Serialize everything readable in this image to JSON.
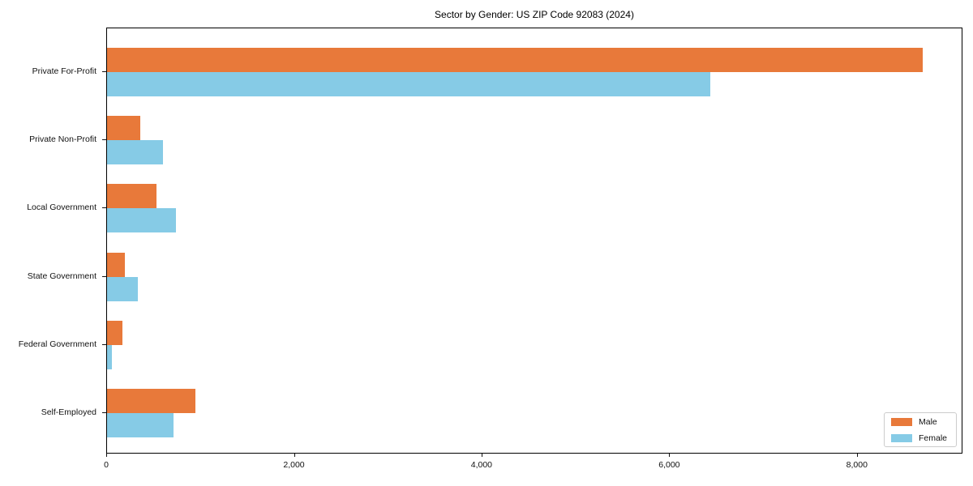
{
  "chart_data": {
    "type": "bar",
    "orientation": "horizontal",
    "title": "Sector by Gender: US ZIP Code 92083 (2024)",
    "categories": [
      "Private For-Profit",
      "Private Non-Profit",
      "Local Government",
      "State Government",
      "Federal Government",
      "Self-Employed"
    ],
    "series": [
      {
        "name": "Male",
        "color": "#e8793a",
        "values": [
          8690,
          350,
          530,
          190,
          165,
          940
        ]
      },
      {
        "name": "Female",
        "color": "#86cbe6",
        "values": [
          6430,
          600,
          730,
          330,
          50,
          710
        ]
      }
    ],
    "xlim": [
      0,
      9125
    ],
    "xticks": [
      0,
      2000,
      4000,
      6000,
      8000
    ],
    "xtick_labels": [
      "0",
      "2,000",
      "4,000",
      "6,000",
      "8,000"
    ],
    "xlabel": "",
    "ylabel": "",
    "grid": false,
    "legend_position": "lower right",
    "spine_color": "#000000",
    "background_color": "#ffffff"
  }
}
